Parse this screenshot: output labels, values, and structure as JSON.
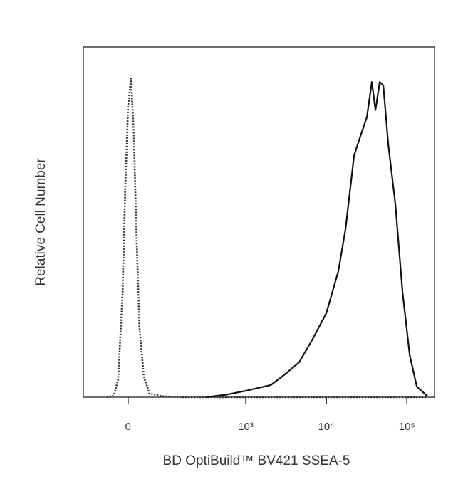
{
  "chart_data": {
    "type": "histogram-line",
    "x_label": "BD OptiBuild™ BV421 SSEA-5",
    "y_label": "Relative Cell Number",
    "x_scale": "biexponential",
    "xlim": [
      -115,
      220000
    ],
    "ylim": [
      0,
      100
    ],
    "xticks": [
      0,
      {
        "value": 1000,
        "label": "10³"
      },
      {
        "value": 10000,
        "label": "10⁴"
      },
      {
        "value": 100000,
        "label": "10⁵"
      }
    ],
    "series": [
      {
        "style": "dotted",
        "color": "#333333",
        "x": [
          -45,
          -29,
          -20,
          -11,
          -5.6,
          0,
          5.7,
          11.4,
          17,
          23,
          32,
          45,
          84,
          171,
          179500
        ],
        "values": [
          0,
          0.5,
          5,
          30,
          60,
          83,
          91,
          75,
          45,
          20,
          6,
          1,
          0.2,
          0,
          0
        ]
      },
      {
        "style": "solid",
        "color": "#111111",
        "x": [
          323,
          598,
          1000,
          2060,
          3060,
          4610,
          6920,
          10000,
          14100,
          17300,
          22100,
          26000,
          31900,
          36700,
          40700,
          46000,
          50900,
          58800,
          72000,
          88300,
          108300,
          132700,
          179500
        ],
        "values": [
          0,
          0.8,
          1.8,
          3.5,
          6.5,
          10,
          17,
          24,
          36,
          48,
          69,
          74,
          80,
          90,
          82,
          90,
          89,
          72,
          55,
          30,
          12,
          3,
          0.3
        ]
      }
    ]
  }
}
